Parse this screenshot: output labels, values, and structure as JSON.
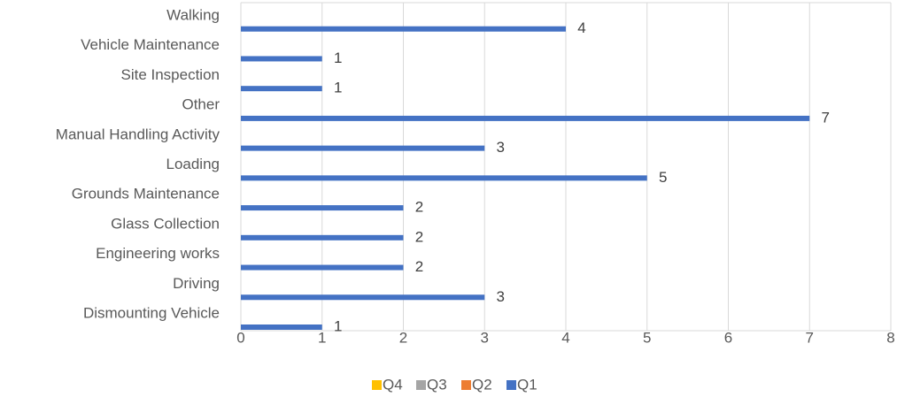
{
  "chart_data": {
    "type": "bar",
    "orientation": "horizontal",
    "categories": [
      "Walking",
      "Vehicle Maintenance",
      "Site Inspection",
      "Other",
      "Manual Handling Activity",
      "Loading",
      "Grounds Maintenance",
      "Glass Collection",
      "Engineering works",
      "Driving",
      "Dismounting Vehicle"
    ],
    "series": [
      {
        "name": "Q4",
        "color": "#FFC000",
        "values": [
          0,
          0,
          0,
          0,
          0,
          0,
          0,
          0,
          0,
          0,
          0
        ]
      },
      {
        "name": "Q3",
        "color": "#A5A5A5",
        "values": [
          0,
          0,
          0,
          0,
          0,
          0,
          0,
          0,
          0,
          0,
          0
        ]
      },
      {
        "name": "Q2",
        "color": "#ED7D31",
        "values": [
          0,
          0,
          0,
          0,
          0,
          0,
          0,
          0,
          0,
          0,
          0
        ]
      },
      {
        "name": "Q1",
        "color": "#4472C4",
        "values": [
          4,
          1,
          1,
          7,
          3,
          5,
          2,
          2,
          2,
          3,
          1
        ]
      }
    ],
    "data_labels": [
      "4",
      "1",
      "1",
      "7",
      "3",
      "5",
      "2",
      "2",
      "2",
      "3",
      "1"
    ],
    "x_ticks": [
      "0",
      "1",
      "2",
      "3",
      "4",
      "5",
      "6",
      "7",
      "8"
    ],
    "xlim": [
      0,
      8
    ],
    "title": "",
    "xlabel": "",
    "ylabel": "",
    "grid": true,
    "legend_position": "bottom"
  }
}
